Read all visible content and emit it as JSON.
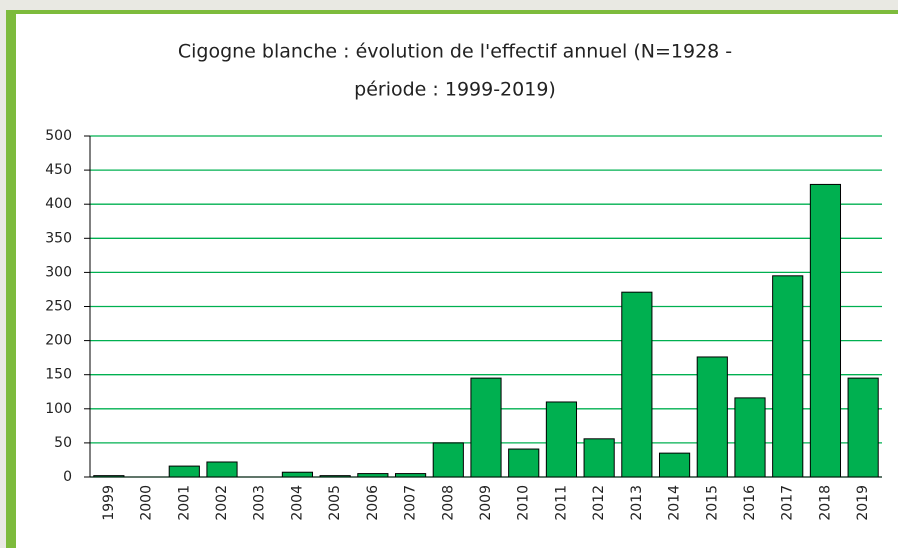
{
  "chart_data": {
    "type": "bar",
    "title": [
      "Cigogne blanche : évolution de l'effectif annuel (N=1928 -",
      "période : 1999-2019)"
    ],
    "categories": [
      "1999",
      "2000",
      "2001",
      "2002",
      "2003",
      "2004",
      "2005",
      "2006",
      "2007",
      "2008",
      "2009",
      "2010",
      "2011",
      "2012",
      "2013",
      "2014",
      "2015",
      "2016",
      "2017",
      "2018",
      "2019"
    ],
    "values": [
      2,
      0,
      16,
      22,
      0,
      7,
      2,
      5,
      5,
      50,
      145,
      41,
      110,
      56,
      271,
      35,
      176,
      116,
      295,
      429,
      145
    ],
    "color": "#00b050",
    "ylim": [
      0,
      500
    ],
    "yticks": [
      0,
      50,
      100,
      150,
      200,
      250,
      300,
      350,
      400,
      450,
      500
    ],
    "grid": true,
    "grid_color": "#00b050"
  }
}
